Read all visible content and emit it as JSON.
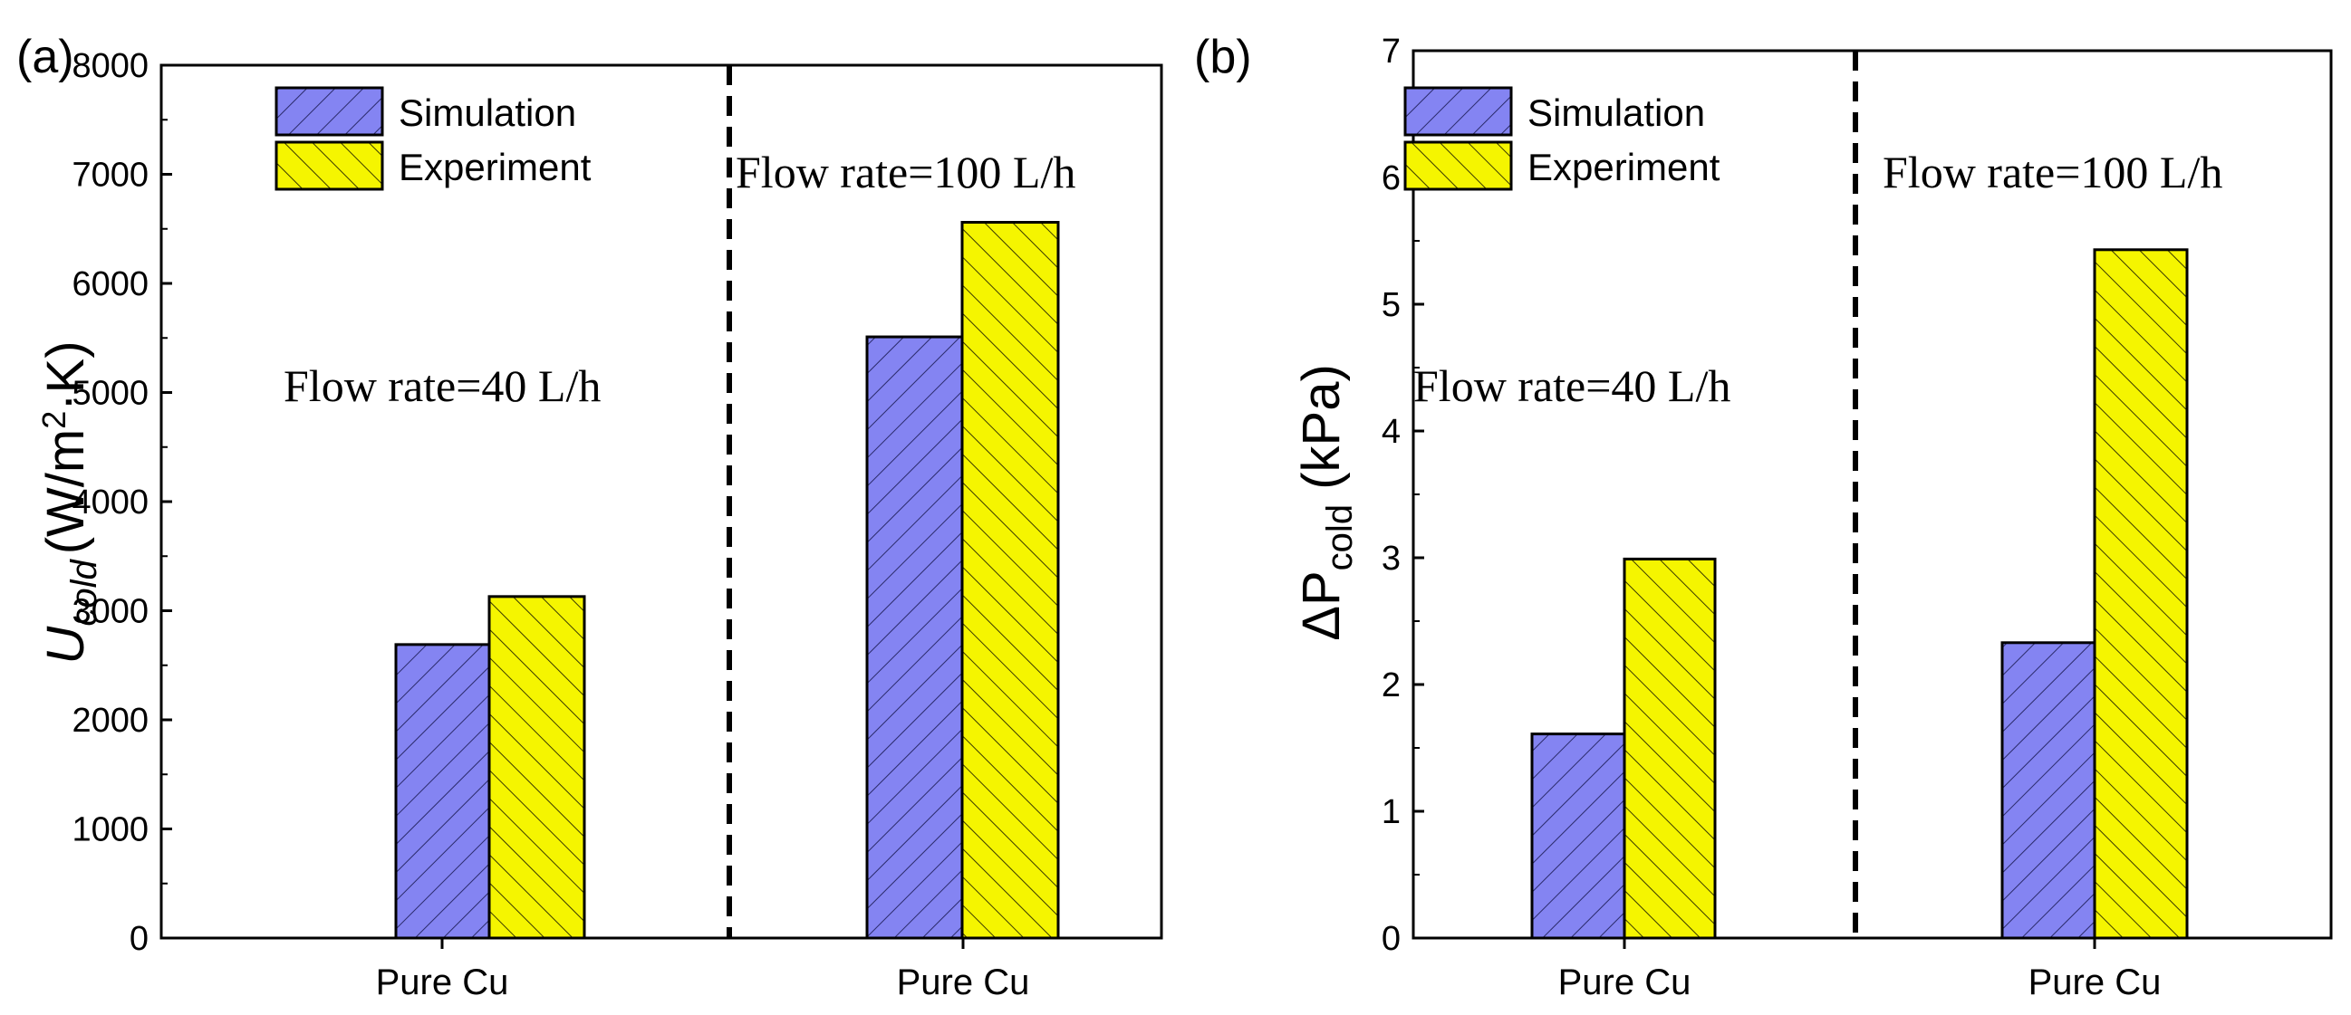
{
  "colors": {
    "simulation": "#8484f2",
    "experiment": "#f5f500",
    "axis": "#000000"
  },
  "chart_data": [
    {
      "panel": "(a)",
      "type": "bar",
      "ylabel_main": "U",
      "ylabel_sub": "cold",
      "ylabel_unit": "(W/m",
      "ylabel_sup": "2",
      "ylabel_unit_end": "·K)",
      "ylim": [
        0,
        8000
      ],
      "yticks": [
        0,
        1000,
        2000,
        3000,
        4000,
        5000,
        6000,
        7000,
        8000
      ],
      "yticks_labels": [
        "0",
        "1000",
        "2000",
        "3000",
        "4000",
        "5000",
        "6000",
        "7000",
        "8000"
      ],
      "categories": [
        "Pure Cu",
        "Pure Cu"
      ],
      "series": [
        {
          "name": "Simulation",
          "values": [
            2690,
            5510
          ]
        },
        {
          "name": "Experiment",
          "values": [
            3130,
            6560
          ]
        }
      ],
      "legend": [
        "Simulation",
        "Experiment"
      ],
      "annotations": [
        "Flow rate=40 L/h",
        "Flow rate=100 L/h"
      ]
    },
    {
      "panel": "(b)",
      "type": "bar",
      "ylabel_main": "ΔP",
      "ylabel_sub": "cold",
      "ylabel_unit": " (kPa)",
      "ylim": [
        0,
        7
      ],
      "yticks": [
        0,
        1,
        2,
        3,
        4,
        5,
        6,
        7
      ],
      "yticks_labels": [
        "0",
        "1",
        "2",
        "3",
        "4",
        "5",
        "6",
        "7"
      ],
      "categories": [
        "Pure Cu",
        "Pure Cu"
      ],
      "series": [
        {
          "name": "Simulation",
          "values": [
            1.61,
            2.33
          ]
        },
        {
          "name": "Experiment",
          "values": [
            2.99,
            5.43
          ]
        }
      ],
      "legend": [
        "Simulation",
        "Experiment"
      ],
      "annotations": [
        "Flow rate=40 L/h",
        "Flow rate=100 L/h"
      ]
    }
  ]
}
